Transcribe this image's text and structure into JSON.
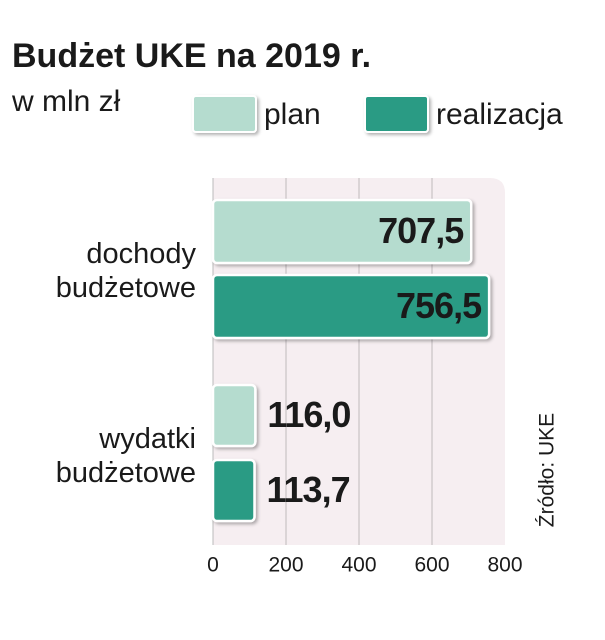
{
  "chart_data": {
    "type": "hbar",
    "title": "Budżet UKE na 2019 r.",
    "subtitle": "w mln zł",
    "categories": [
      "dochody budżetowe",
      "wydatki budżetowe"
    ],
    "series": [
      {
        "name": "plan",
        "color": "#b5dccf",
        "values": [
          707.5,
          116.0
        ],
        "value_labels": [
          "707,5",
          "116,0"
        ]
      },
      {
        "name": "realizacja",
        "color": "#2a9b84",
        "values": [
          756.5,
          113.7
        ],
        "value_labels": [
          "756,5",
          "113,7"
        ]
      }
    ],
    "xlim": [
      0,
      800
    ],
    "xticks": [
      0,
      200,
      400,
      600,
      800
    ],
    "grid": true,
    "source": "Źródło: UKE"
  }
}
